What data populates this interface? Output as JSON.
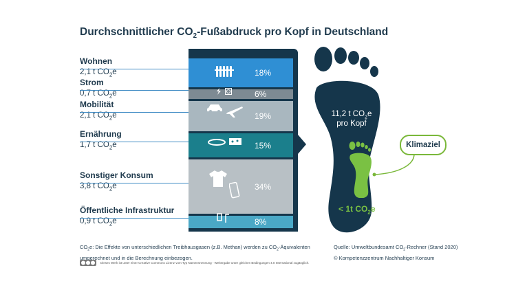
{
  "title": "Durchschnittlicher CO",
  "title_sub": "2",
  "title_rest": "-Fußabdruck pro Kopf in Deutschland",
  "chart_data": {
    "type": "bar",
    "categories": [
      "Wohnen",
      "Strom",
      "Mobilität",
      "Ernährung",
      "Sonstiger Konsum",
      "Öffentliche Infrastruktur"
    ],
    "values_t": [
      "2,1 t CO",
      "0,7 t CO",
      "2,1 t CO",
      "1,7 t CO",
      "3,8 t CO",
      "0,9 t CO"
    ],
    "values": [
      18,
      6,
      19,
      15,
      34,
      8
    ],
    "percent_labels": [
      "18%",
      "6%",
      "19%",
      "15%",
      "34%",
      "8%"
    ],
    "unit_sub": "2",
    "unit_suffix": "e",
    "colors": [
      "#2f8fd4",
      "#7d8a93",
      "#a9b7bf",
      "#1b7f8c",
      "#b8c0c5",
      "#4aa8c6"
    ],
    "total_line1": "11,2 t CO",
    "total_line1_suffix": "e",
    "total_line2": "pro Kopf",
    "goal_label": "Klimaziel",
    "goal_value": "< 1t CO",
    "goal_suffix": "e"
  },
  "footnote_left_1": "CO",
  "footnote_left_1b": "e: Die Effekte von unterschiedlichen Treibhausgasen (z.B. Methan) werden zu CO",
  "footnote_left_1c": "-Äquivalenten",
  "footnote_left_2": "umgerechnet und in die Berechnung einbezogen.",
  "footnote_right_1": "Quelle: Umweltbundesamt CO",
  "footnote_right_1b": "-Rechner (Stand 2020)",
  "footnote_right_2": "© Kompetenzzentrum Nachhaltiger Konsum",
  "license_text": "Dieses Werk ist unter einer Creative Commons Lizenz vom Typ Namensnennung - Weitergabe unter gleichen Bedingungen 4.0 International zugänglich.",
  "license_icon": "cc-by-sa-icon",
  "sub2": "2"
}
